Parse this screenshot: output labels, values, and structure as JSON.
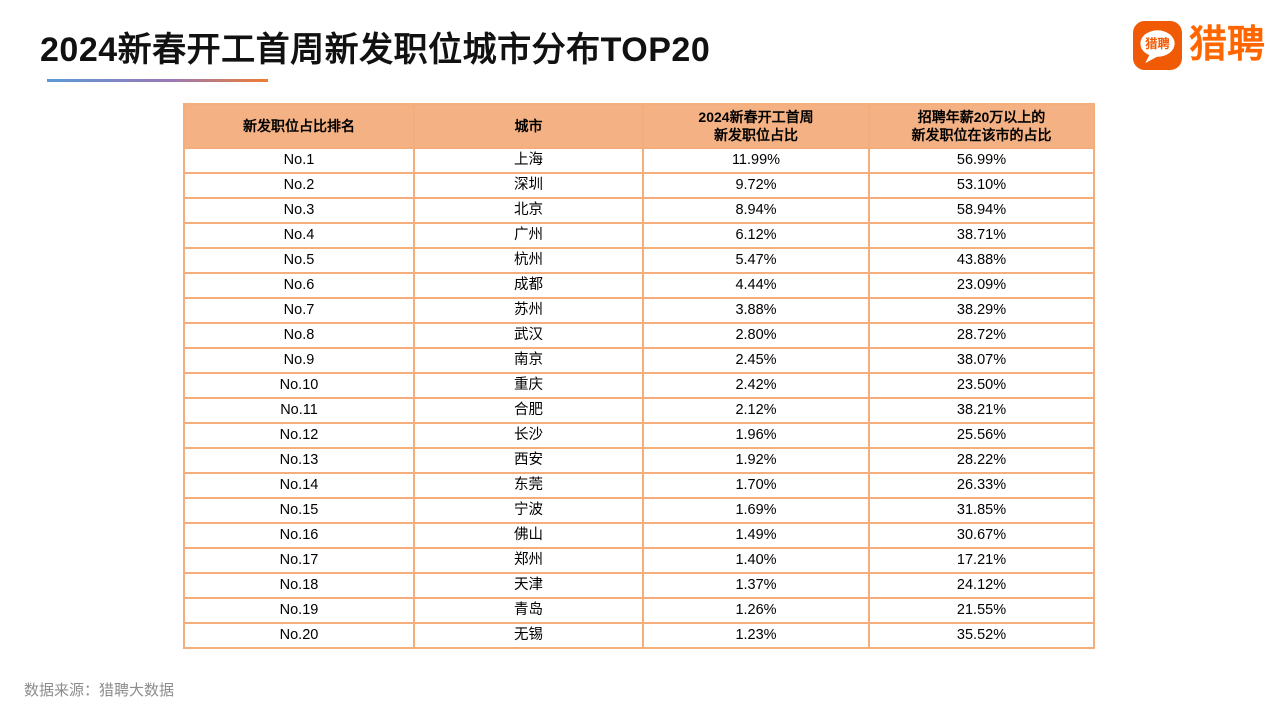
{
  "page": {
    "title": "2024新春开工首周新发职位城市分布TOP20",
    "footer": "数据来源：猎聘大数据"
  },
  "logo": {
    "icon_text": "猎聘",
    "wordmark": "猎聘"
  },
  "colors": {
    "brand_orange": "#FF6600",
    "logo_icon_fill": "#F15A05",
    "table_header_fill": "#F4B183",
    "table_border_inner": "#F5AD7B",
    "table_border_outer": "#E8812F",
    "underline_gradient": [
      "#5B9BD5",
      "#9A79B8",
      "#ED7D31"
    ],
    "footer_text": "#8C8C8C"
  },
  "table": {
    "header_lines": [
      [
        "新发职位占比排名"
      ],
      [
        "城市"
      ],
      [
        "2024新春开工首周",
        "新发职位占比"
      ],
      [
        "招聘年薪20万以上的",
        "新发职位在该市的占比"
      ]
    ]
  },
  "chart_data": {
    "type": "table",
    "title": "2024新春开工首周新发职位城市分布TOP20",
    "columns": [
      "新发职位占比排名",
      "城市",
      "2024新春开工首周新发职位占比",
      "招聘年薪20万以上的新发职位在该市的占比"
    ],
    "rows": [
      [
        "No.1",
        "上海",
        "11.99%",
        "56.99%"
      ],
      [
        "No.2",
        "深圳",
        "9.72%",
        "53.10%"
      ],
      [
        "No.3",
        "北京",
        "8.94%",
        "58.94%"
      ],
      [
        "No.4",
        "广州",
        "6.12%",
        "38.71%"
      ],
      [
        "No.5",
        "杭州",
        "5.47%",
        "43.88%"
      ],
      [
        "No.6",
        "成都",
        "4.44%",
        "23.09%"
      ],
      [
        "No.7",
        "苏州",
        "3.88%",
        "38.29%"
      ],
      [
        "No.8",
        "武汉",
        "2.80%",
        "28.72%"
      ],
      [
        "No.9",
        "南京",
        "2.45%",
        "38.07%"
      ],
      [
        "No.10",
        "重庆",
        "2.42%",
        "23.50%"
      ],
      [
        "No.11",
        "合肥",
        "2.12%",
        "38.21%"
      ],
      [
        "No.12",
        "长沙",
        "1.96%",
        "25.56%"
      ],
      [
        "No.13",
        "西安",
        "1.92%",
        "28.22%"
      ],
      [
        "No.14",
        "东莞",
        "1.70%",
        "26.33%"
      ],
      [
        "No.15",
        "宁波",
        "1.69%",
        "31.85%"
      ],
      [
        "No.16",
        "佛山",
        "1.49%",
        "30.67%"
      ],
      [
        "No.17",
        "郑州",
        "1.40%",
        "17.21%"
      ],
      [
        "No.18",
        "天津",
        "1.37%",
        "24.12%"
      ],
      [
        "No.19",
        "青岛",
        "1.26%",
        "21.55%"
      ],
      [
        "No.20",
        "无锡",
        "1.23%",
        "35.52%"
      ]
    ]
  }
}
